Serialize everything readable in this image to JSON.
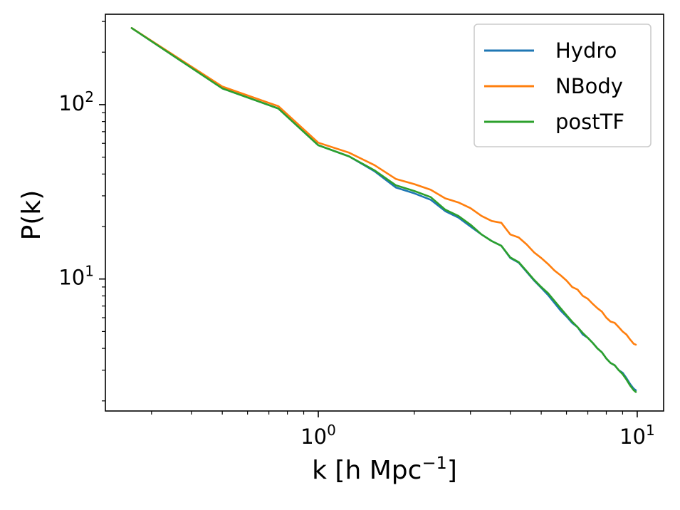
{
  "chart_data": {
    "type": "line",
    "xlabel": "k [h Mpc",
    "xlabel_sup": "−1",
    "xlabel_suffix": "]",
    "ylabel": "P(k)",
    "xscale": "log",
    "yscale": "log",
    "xlim": [
      0.215,
      12.1
    ],
    "ylim": [
      1.75,
      330
    ],
    "xticks": [
      {
        "value": 1,
        "base": "10",
        "exp": "0"
      },
      {
        "value": 10,
        "base": "10",
        "exp": "1"
      }
    ],
    "yticks": [
      {
        "value": 10,
        "base": "10",
        "exp": "1"
      },
      {
        "value": 100,
        "base": "10",
        "exp": "2"
      }
    ],
    "grid": false,
    "legend_position": "top-right",
    "series": [
      {
        "name": "Hydro",
        "color": "#1f77b4",
        "x": [
          0.26,
          0.5,
          0.75,
          1.0,
          1.25,
          1.5,
          1.75,
          2.0,
          2.25,
          2.5,
          2.75,
          3.0,
          3.25,
          3.5,
          3.75,
          4.0,
          4.25,
          4.5,
          4.75,
          5.0,
          5.25,
          5.5,
          5.75,
          6.0,
          6.25,
          6.5,
          6.75,
          7.0,
          7.25,
          7.5,
          7.75,
          8.0,
          8.25,
          8.5,
          8.75,
          9.0,
          9.25,
          9.5,
          9.75,
          9.9
        ],
        "y": [
          275,
          124,
          95,
          58.5,
          50.5,
          41.5,
          33.5,
          31.0,
          28.5,
          24.5,
          22.5,
          20.0,
          18.0,
          16.5,
          15.5,
          13.2,
          12.4,
          11.0,
          9.8,
          8.9,
          8.1,
          7.3,
          6.6,
          6.1,
          5.6,
          5.3,
          4.8,
          4.6,
          4.3,
          4.0,
          3.8,
          3.5,
          3.3,
          3.2,
          3.0,
          2.9,
          2.7,
          2.5,
          2.35,
          2.3
        ]
      },
      {
        "name": "NBody",
        "color": "#ff7f0e",
        "x": [
          0.26,
          0.5,
          0.75,
          1.0,
          1.25,
          1.5,
          1.75,
          2.0,
          2.25,
          2.5,
          2.75,
          3.0,
          3.25,
          3.5,
          3.75,
          4.0,
          4.25,
          4.5,
          4.75,
          5.0,
          5.25,
          5.5,
          5.75,
          6.0,
          6.25,
          6.5,
          6.75,
          7.0,
          7.25,
          7.5,
          7.75,
          8.0,
          8.25,
          8.5,
          8.75,
          9.0,
          9.25,
          9.5,
          9.75,
          9.9
        ],
        "y": [
          275,
          127,
          98,
          60.5,
          53.0,
          45.0,
          37.5,
          35.0,
          32.5,
          29.0,
          27.5,
          25.5,
          23.0,
          21.5,
          21.0,
          18.0,
          17.3,
          15.8,
          14.2,
          13.2,
          12.2,
          11.2,
          10.5,
          9.8,
          9.0,
          8.7,
          8.0,
          7.7,
          7.2,
          6.8,
          6.5,
          6.0,
          5.7,
          5.6,
          5.3,
          5.0,
          4.8,
          4.5,
          4.25,
          4.2
        ]
      },
      {
        "name": "postTF",
        "color": "#2ca02c",
        "x": [
          0.26,
          0.5,
          0.75,
          1.0,
          1.25,
          1.5,
          1.75,
          2.0,
          2.25,
          2.5,
          2.75,
          3.0,
          3.25,
          3.5,
          3.75,
          4.0,
          4.25,
          4.5,
          4.75,
          5.0,
          5.25,
          5.5,
          5.75,
          6.0,
          6.25,
          6.5,
          6.75,
          7.0,
          7.25,
          7.5,
          7.75,
          8.0,
          8.25,
          8.5,
          8.75,
          9.0,
          9.25,
          9.5,
          9.75,
          9.9
        ],
        "y": [
          275,
          124,
          95,
          58.5,
          50.5,
          42.0,
          34.5,
          32.0,
          29.5,
          25.0,
          23.0,
          20.5,
          18.0,
          16.5,
          15.5,
          13.3,
          12.5,
          11.1,
          9.9,
          9.0,
          8.3,
          7.5,
          6.8,
          6.2,
          5.7,
          5.3,
          4.9,
          4.6,
          4.3,
          4.0,
          3.8,
          3.5,
          3.3,
          3.2,
          3.0,
          2.85,
          2.65,
          2.45,
          2.3,
          2.25
        ]
      }
    ]
  }
}
